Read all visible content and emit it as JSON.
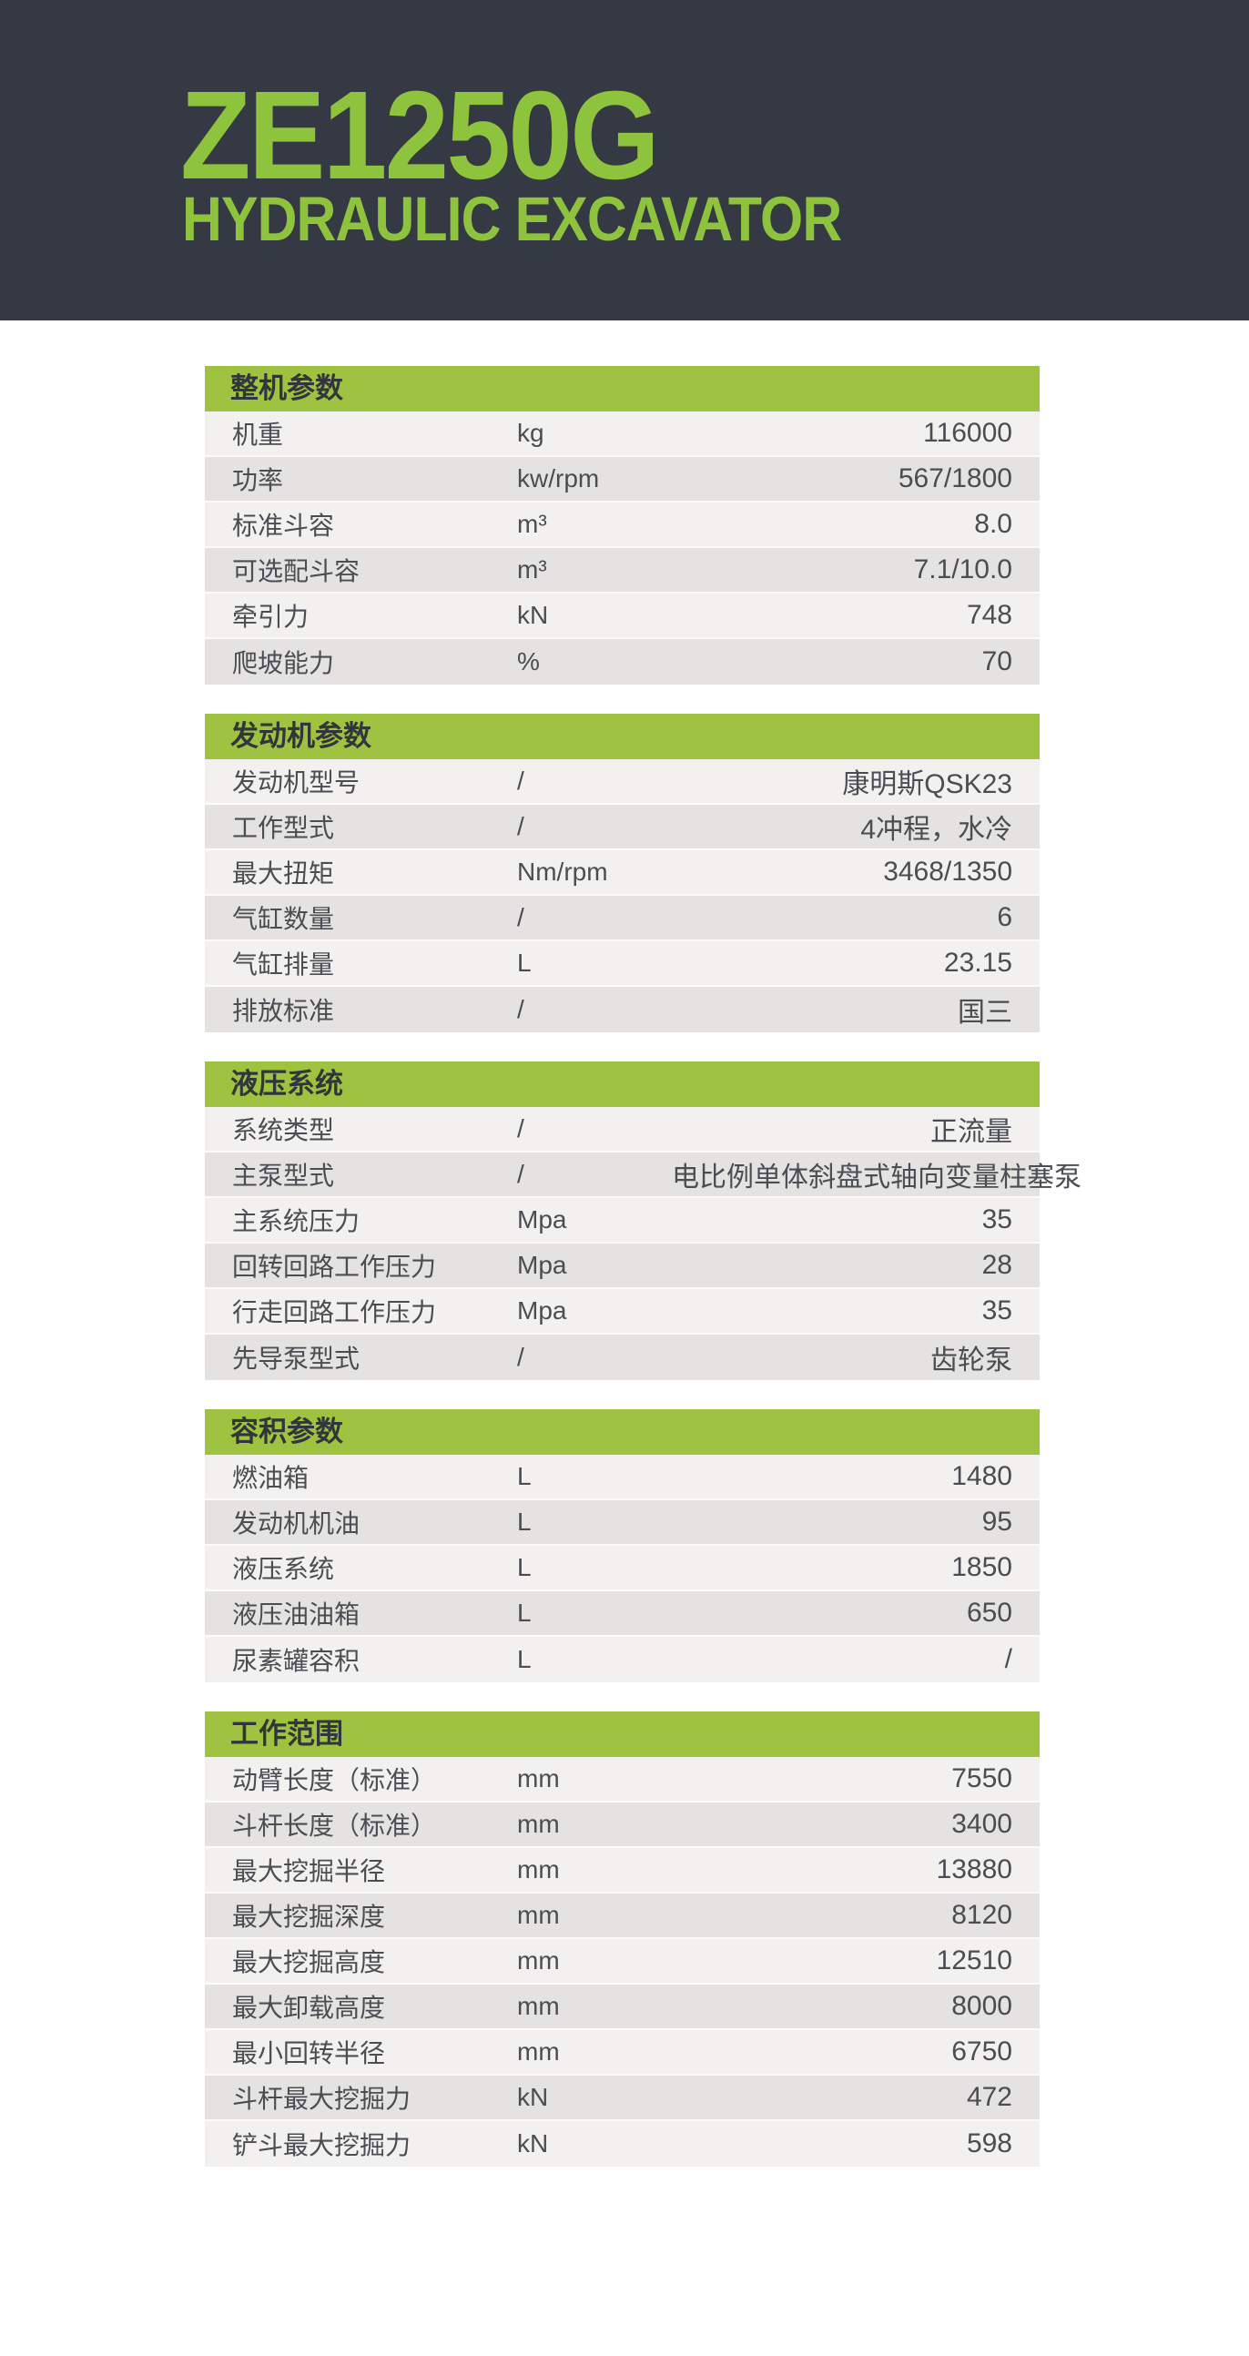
{
  "header": {
    "title": "ZE1250G",
    "subtitle": "HYDRAULIC EXCAVATOR"
  },
  "colors": {
    "header_background": "#353944",
    "accent_green_text": "#8ec43d",
    "accent_green_bar": "#9fc341",
    "row_light": "#f2f1ef",
    "row_dark": "#e5e3e1",
    "row_text": "#4a4d52",
    "section_title_text": "#32363c",
    "page_background": "#ffffff"
  },
  "sections": [
    {
      "title": "整机参数",
      "rows": [
        {
          "label": "机重",
          "unit": "kg",
          "value": "116000"
        },
        {
          "label": "功率",
          "unit": "kw/rpm",
          "value": "567/1800"
        },
        {
          "label": "标准斗容",
          "unit": "m³",
          "value": "8.0"
        },
        {
          "label": "可选配斗容",
          "unit": "m³",
          "value": "7.1/10.0"
        },
        {
          "label": "牵引力",
          "unit": "kN",
          "value": "748"
        },
        {
          "label": "爬坡能力",
          "unit": "%",
          "value": "70"
        }
      ]
    },
    {
      "title": "发动机参数",
      "rows": [
        {
          "label": "发动机型号",
          "unit": "/",
          "value": "康明斯QSK23"
        },
        {
          "label": "工作型式",
          "unit": "/",
          "value": "4冲程，水冷"
        },
        {
          "label": "最大扭矩",
          "unit": "Nm/rpm",
          "value": "3468/1350"
        },
        {
          "label": "气缸数量",
          "unit": "/",
          "value": "6"
        },
        {
          "label": "气缸排量",
          "unit": "L",
          "value": "23.15"
        },
        {
          "label": "排放标准",
          "unit": "/",
          "value": "国三"
        }
      ]
    },
    {
      "title": "液压系统",
      "rows": [
        {
          "label": "系统类型",
          "unit": "/",
          "value": "正流量"
        },
        {
          "label": "主泵型式",
          "unit": "/",
          "value": "电比例单体斜盘式轴向变量柱塞泵"
        },
        {
          "label": "主系统压力",
          "unit": "Mpa",
          "value": "35"
        },
        {
          "label": "回转回路工作压力",
          "unit": "Mpa",
          "value": "28"
        },
        {
          "label": "行走回路工作压力",
          "unit": "Mpa",
          "value": "35"
        },
        {
          "label": "先导泵型式",
          "unit": "/",
          "value": "齿轮泵"
        }
      ]
    },
    {
      "title": "容积参数",
      "rows": [
        {
          "label": "燃油箱",
          "unit": "L",
          "value": "1480"
        },
        {
          "label": "发动机机油",
          "unit": "L",
          "value": "95"
        },
        {
          "label": "液压系统",
          "unit": "L",
          "value": "1850"
        },
        {
          "label": "液压油油箱",
          "unit": "L",
          "value": "650"
        },
        {
          "label": "尿素罐容积",
          "unit": "L",
          "value": "/"
        }
      ]
    },
    {
      "title": "工作范围",
      "rows": [
        {
          "label": "动臂长度（标准）",
          "unit": "mm",
          "value": "7550"
        },
        {
          "label": "斗杆长度（标准）",
          "unit": "mm",
          "value": "3400"
        },
        {
          "label": "最大挖掘半径",
          "unit": "mm",
          "value": "13880"
        },
        {
          "label": "最大挖掘深度",
          "unit": "mm",
          "value": "8120"
        },
        {
          "label": "最大挖掘高度",
          "unit": "mm",
          "value": "12510"
        },
        {
          "label": "最大卸载高度",
          "unit": "mm",
          "value": "8000"
        },
        {
          "label": "最小回转半径",
          "unit": "mm",
          "value": "6750"
        },
        {
          "label": "斗杆最大挖掘力",
          "unit": "kN",
          "value": "472"
        },
        {
          "label": "铲斗最大挖掘力",
          "unit": "kN",
          "value": "598"
        }
      ]
    }
  ]
}
